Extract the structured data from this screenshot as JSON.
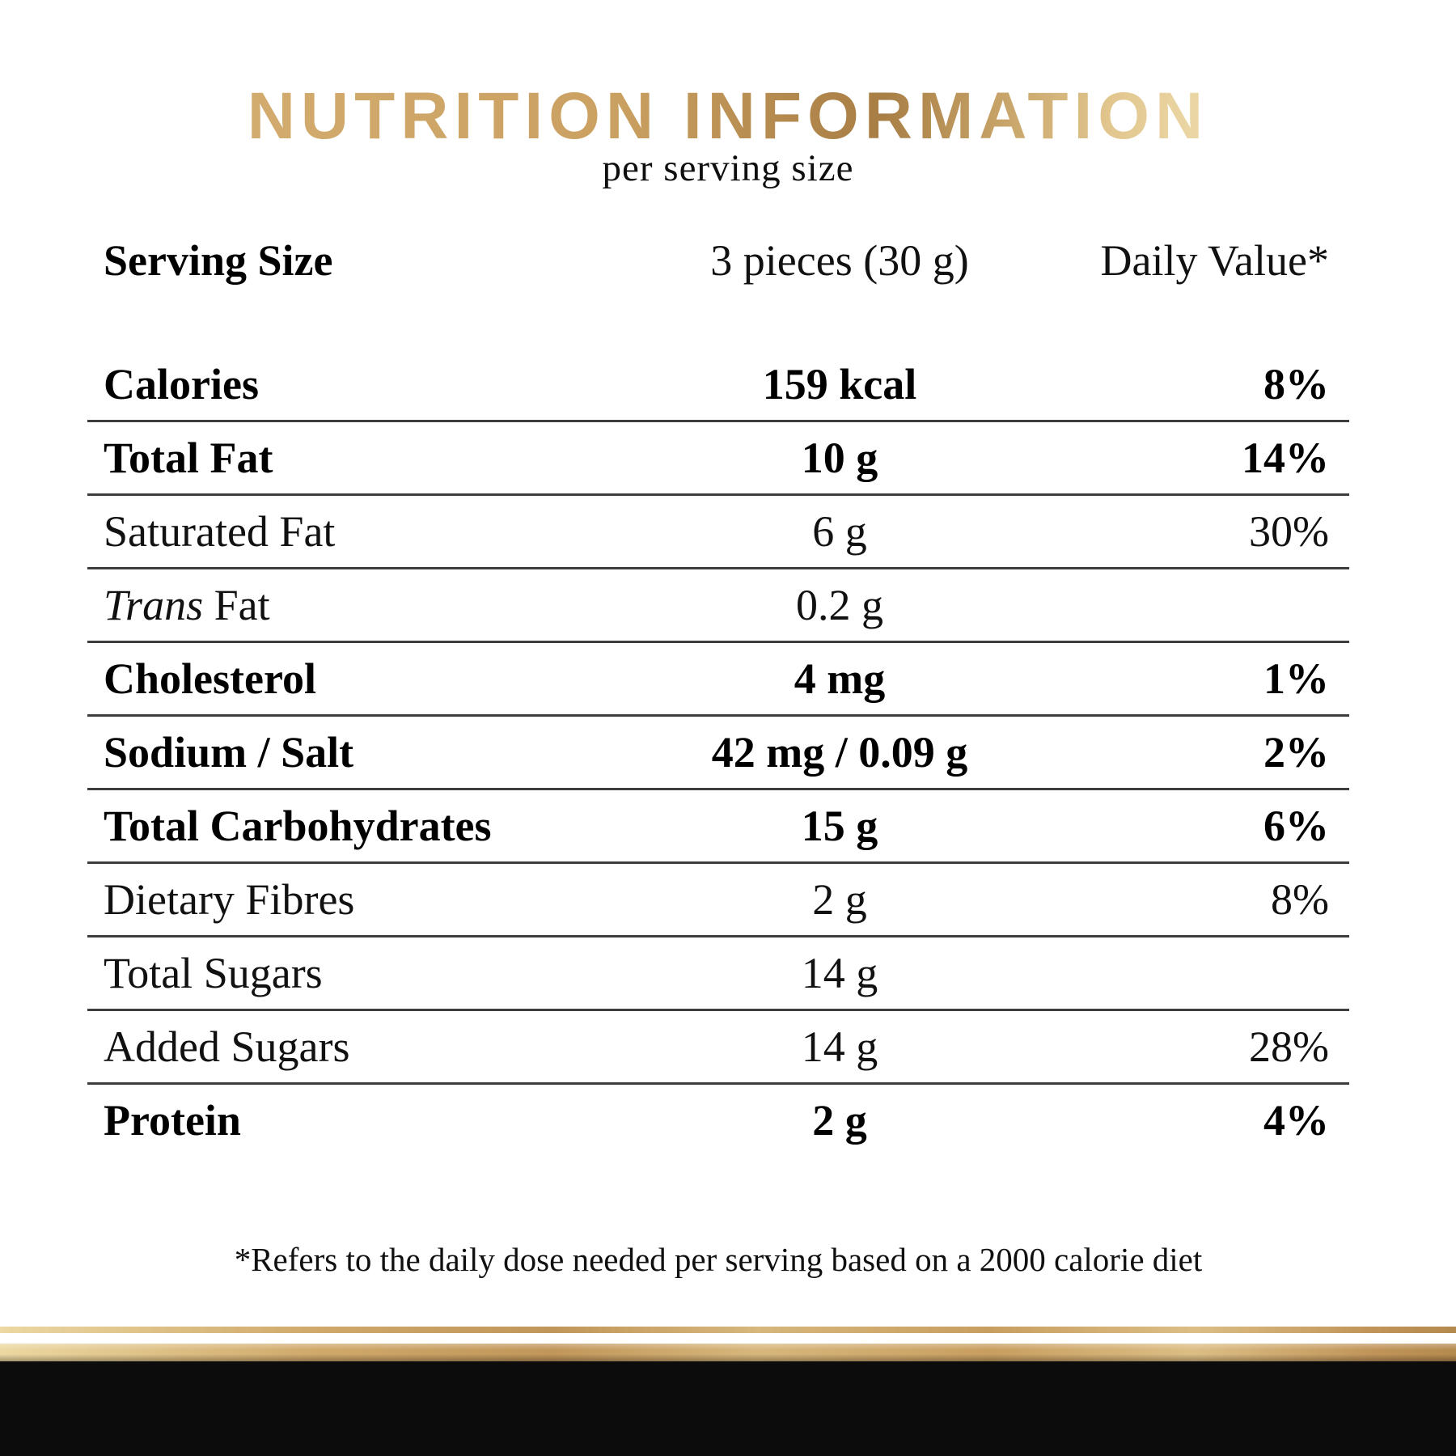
{
  "header": {
    "title": "NUTRITION INFORMATION",
    "subtitle": "per serving size"
  },
  "table": {
    "header_row": {
      "label": "Serving Size",
      "value": "3 pieces (30 g)",
      "dv": "Daily Value*"
    },
    "rows": [
      {
        "label": "Calories",
        "value": "159 kcal",
        "dv": "8%",
        "bold": true
      },
      {
        "label": "Total Fat",
        "value": "10 g",
        "dv": "14%",
        "bold": true
      },
      {
        "label": "Saturated Fat",
        "value": "6 g",
        "dv": "30%",
        "bold": false
      },
      {
        "label_italic_prefix": "Trans",
        "label": " Fat",
        "value": "0.2 g",
        "dv": "",
        "bold": false
      },
      {
        "label": "Cholesterol",
        "value": "4 mg",
        "dv": "1%",
        "bold": true
      },
      {
        "label": "Sodium / Salt",
        "value": "42 mg / 0.09 g",
        "dv": "2%",
        "bold": true
      },
      {
        "label": "Total Carbohydrates",
        "value": "15 g",
        "dv": "6%",
        "bold": true
      },
      {
        "label": "Dietary Fibres",
        "value": "2 g",
        "dv": "8%",
        "bold": false
      },
      {
        "label": "Total Sugars",
        "value": "14 g",
        "dv": "",
        "bold": false
      },
      {
        "label": "Added Sugars",
        "value": "14 g",
        "dv": "28%",
        "bold": false
      },
      {
        "label": "Protein",
        "value": "2 g",
        "dv": "4%",
        "bold": true,
        "no_rule": true
      }
    ]
  },
  "footnote": "*Refers to the daily dose needed per serving based on a 2000 calorie diet",
  "colors": {
    "gold_title_left": "#d2ab6e",
    "gold_title_dark": "#a87e45",
    "gold_title_light": "#ecd9a8",
    "gold_bar_light": "#ecd8a2",
    "gold_bar_dark": "#b58a4e",
    "rule": "#3d3d3d",
    "text": "#000000",
    "black_band": "#0c0c0c",
    "background": "#ffffff"
  }
}
